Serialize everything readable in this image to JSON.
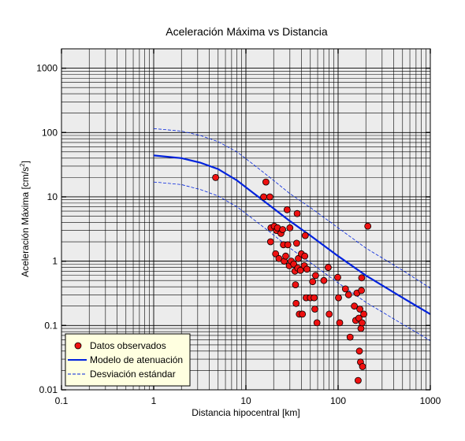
{
  "chart_data": {
    "type": "scatter",
    "title": "Aceleración Máxima vs Distancia",
    "xlabel": "Distancia hipocentral [km]",
    "ylabel_main": "Aceleración Máxima [cm/s",
    "ylabel_sup": "2",
    "ylabel_end": "]",
    "x_scale": "log",
    "y_scale": "log",
    "xlim": [
      0.1,
      1000
    ],
    "ylim": [
      0.01,
      2000
    ],
    "x_ticks": [
      {
        "v": 0.1,
        "label": "0.1"
      },
      {
        "v": 1,
        "label": "1"
      },
      {
        "v": 10,
        "label": "10"
      },
      {
        "v": 100,
        "label": "100"
      },
      {
        "v": 1000,
        "label": "1000"
      }
    ],
    "y_ticks": [
      {
        "v": 0.01,
        "label": "0.01"
      },
      {
        "v": 0.1,
        "label": "0.1"
      },
      {
        "v": 1,
        "label": "1"
      },
      {
        "v": 10,
        "label": "10"
      },
      {
        "v": 100,
        "label": "100"
      },
      {
        "v": 1000,
        "label": "1000"
      }
    ],
    "grid": true,
    "legend_position": "bottom-left",
    "legend": {
      "observed": "Datos observados",
      "model": "Modelo de atenuación",
      "std": "Desviación estándar"
    },
    "colors": {
      "plot_bg": "#ececec",
      "grid": "#000000",
      "points": "#ee1111",
      "model": "#0022dd",
      "legend_bg": "#ffffe0"
    },
    "series": [
      {
        "name": "Datos observados",
        "kind": "scatter",
        "points": [
          [
            4.7,
            20
          ],
          [
            15.6,
            10
          ],
          [
            16.5,
            17
          ],
          [
            18.2,
            10
          ],
          [
            18.7,
            3.3
          ],
          [
            18.5,
            2
          ],
          [
            20.3,
            3.5
          ],
          [
            21,
            1.3
          ],
          [
            21.5,
            3.0
          ],
          [
            22,
            3.3
          ],
          [
            22.8,
            1.1
          ],
          [
            24,
            2.7
          ],
          [
            25,
            3.1
          ],
          [
            25.5,
            1.8
          ],
          [
            26,
            1.0
          ],
          [
            27,
            1.2
          ],
          [
            28,
            6.3
          ],
          [
            28.5,
            1.8
          ],
          [
            29.5,
            0.85
          ],
          [
            30,
            3.3
          ],
          [
            31,
            1.0
          ],
          [
            33,
            0.9
          ],
          [
            34,
            0.7
          ],
          [
            34.5,
            0.43
          ],
          [
            35,
            0.22
          ],
          [
            35.5,
            1.9
          ],
          [
            36,
            5.5
          ],
          [
            36.5,
            0.78
          ],
          [
            37,
            1.1
          ],
          [
            38,
            0.15
          ],
          [
            39,
            0.72
          ],
          [
            40,
            1.3
          ],
          [
            41,
            0.15
          ],
          [
            43,
            0.85
          ],
          [
            43.5,
            1.2
          ],
          [
            44,
            2.5
          ],
          [
            45,
            0.27
          ],
          [
            46,
            0.75
          ],
          [
            50,
            0.27
          ],
          [
            53,
            0.48
          ],
          [
            55,
            0.27
          ],
          [
            56,
            0.18
          ],
          [
            57,
            0.6
          ],
          [
            59,
            0.11
          ],
          [
            70,
            0.5
          ],
          [
            78,
            0.8
          ],
          [
            80,
            0.15
          ],
          [
            99,
            0.56
          ],
          [
            101,
            0.27
          ],
          [
            104,
            0.11
          ],
          [
            120,
            0.37
          ],
          [
            130,
            0.3
          ],
          [
            135,
            0.066
          ],
          [
            150,
            0.2
          ],
          [
            155,
            0.12
          ],
          [
            160,
            0.32
          ],
          [
            165,
            0.014
          ],
          [
            168,
            0.13
          ],
          [
            170,
            0.04
          ],
          [
            172,
            0.18
          ],
          [
            175,
            0.027
          ],
          [
            177,
            0.09
          ],
          [
            179,
            0.35
          ],
          [
            180,
            0.55
          ],
          [
            182,
            0.11
          ],
          [
            184,
            0.023
          ],
          [
            190,
            0.15
          ],
          [
            210,
            3.5
          ]
        ]
      },
      {
        "name": "Modelo de atenuación",
        "kind": "line",
        "points": [
          [
            1,
            44
          ],
          [
            2,
            40
          ],
          [
            3.2,
            34
          ],
          [
            5,
            27
          ],
          [
            8,
            18
          ],
          [
            12,
            11.5
          ],
          [
            20,
            6.6
          ],
          [
            30,
            4.2
          ],
          [
            50,
            2.5
          ],
          [
            100,
            1.2
          ],
          [
            200,
            0.6
          ],
          [
            500,
            0.27
          ],
          [
            1000,
            0.15
          ]
        ]
      },
      {
        "name": "Desviación estándar superior",
        "kind": "line",
        "points": [
          [
            1,
            115
          ],
          [
            2,
            105
          ],
          [
            3.2,
            90
          ],
          [
            5,
            72
          ],
          [
            8,
            50
          ],
          [
            12,
            32
          ],
          [
            20,
            18
          ],
          [
            30,
            11.2
          ],
          [
            50,
            6.8
          ],
          [
            100,
            3.3
          ],
          [
            200,
            1.6
          ],
          [
            500,
            0.72
          ],
          [
            1000,
            0.38
          ]
        ]
      },
      {
        "name": "Desviación estándar inferior",
        "kind": "line",
        "points": [
          [
            1,
            17
          ],
          [
            2,
            15.5
          ],
          [
            3.2,
            13
          ],
          [
            5,
            10.3
          ],
          [
            8,
            7
          ],
          [
            12,
            4.5
          ],
          [
            20,
            2.55
          ],
          [
            30,
            1.6
          ],
          [
            50,
            0.95
          ],
          [
            100,
            0.46
          ],
          [
            200,
            0.23
          ],
          [
            500,
            0.105
          ],
          [
            1000,
            0.058
          ]
        ]
      }
    ]
  }
}
